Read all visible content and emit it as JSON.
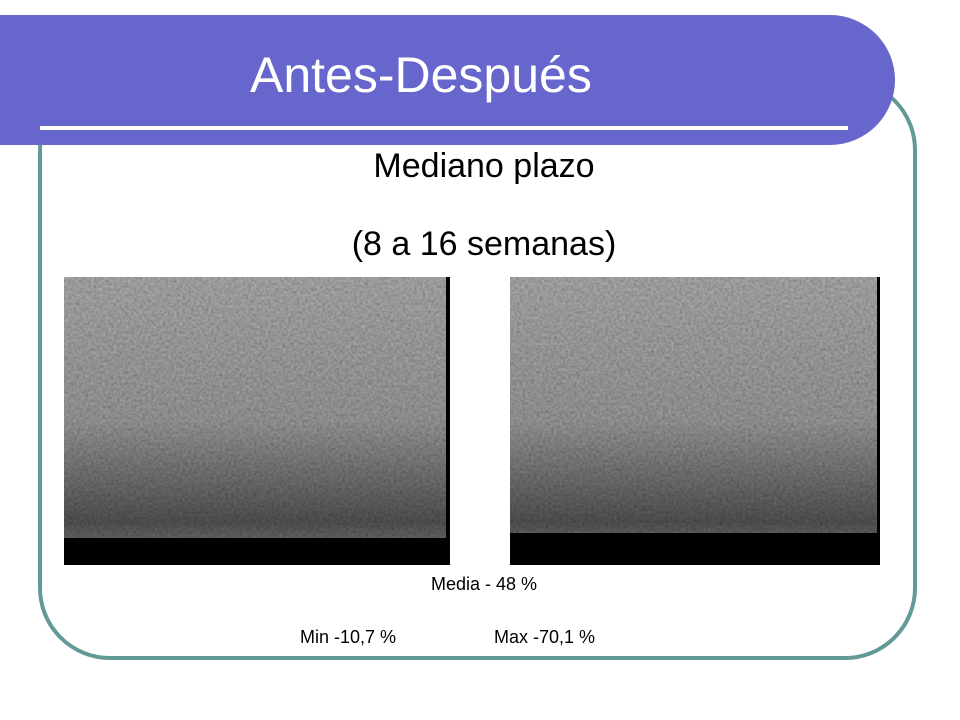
{
  "slide": {
    "title": "Antes-Después",
    "subtitle": [
      "Mediano plazo",
      "(8 a 16 semanas)"
    ],
    "stats": {
      "mean": "Media - 48 %",
      "min": "Min -10,7 %",
      "max": "Max -70,1 %"
    }
  }
}
